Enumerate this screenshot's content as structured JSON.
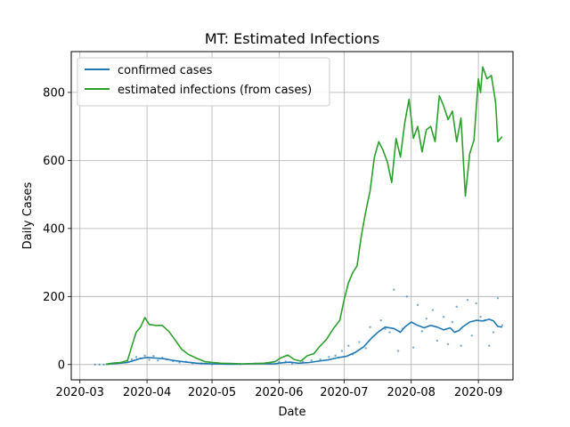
{
  "chart_data": {
    "type": "line",
    "title": "MT: Estimated Infections",
    "xlabel": "Date",
    "ylabel": "Daily Cases",
    "x_ticks": [
      "2020-03",
      "2020-04",
      "2020-05",
      "2020-06",
      "2020-07",
      "2020-08",
      "2020-09"
    ],
    "x_tick_days": [
      0,
      31,
      61,
      92,
      122,
      153,
      184
    ],
    "y_ticks": [
      0,
      200,
      400,
      600,
      800
    ],
    "xlim": [
      "2020-02-26",
      "2020-09-17"
    ],
    "ylim": [
      -45,
      920
    ],
    "grid": true,
    "legend_position": "upper-left",
    "series": [
      {
        "name": "confirmed cases",
        "color": "#1f77b4",
        "points": [
          [
            "2020-03-13",
            1
          ],
          [
            "2020-03-18",
            3
          ],
          [
            "2020-03-23",
            6
          ],
          [
            "2020-03-26",
            12
          ],
          [
            "2020-03-29",
            18
          ],
          [
            "2020-04-01",
            21
          ],
          [
            "2020-04-05",
            19
          ],
          [
            "2020-04-09",
            17
          ],
          [
            "2020-04-13",
            12
          ],
          [
            "2020-04-18",
            8
          ],
          [
            "2020-04-24",
            4
          ],
          [
            "2020-05-01",
            2
          ],
          [
            "2020-05-10",
            1
          ],
          [
            "2020-05-20",
            2
          ],
          [
            "2020-05-30",
            2
          ],
          [
            "2020-06-02",
            5
          ],
          [
            "2020-06-06",
            7
          ],
          [
            "2020-06-10",
            4
          ],
          [
            "2020-06-15",
            6
          ],
          [
            "2020-06-19",
            10
          ],
          [
            "2020-06-24",
            14
          ],
          [
            "2020-06-28",
            20
          ],
          [
            "2020-07-02",
            24
          ],
          [
            "2020-07-06",
            35
          ],
          [
            "2020-07-10",
            52
          ],
          [
            "2020-07-14",
            80
          ],
          [
            "2020-07-17",
            97
          ],
          [
            "2020-07-20",
            110
          ],
          [
            "2020-07-24",
            106
          ],
          [
            "2020-07-27",
            95
          ],
          [
            "2020-07-29",
            110
          ],
          [
            "2020-08-01",
            125
          ],
          [
            "2020-08-04",
            115
          ],
          [
            "2020-08-07",
            108
          ],
          [
            "2020-08-10",
            115
          ],
          [
            "2020-08-13",
            110
          ],
          [
            "2020-08-16",
            102
          ],
          [
            "2020-08-19",
            108
          ],
          [
            "2020-08-21",
            95
          ],
          [
            "2020-08-23",
            100
          ],
          [
            "2020-08-25",
            112
          ],
          [
            "2020-08-28",
            125
          ],
          [
            "2020-08-31",
            130
          ],
          [
            "2020-09-03",
            128
          ],
          [
            "2020-09-06",
            133
          ],
          [
            "2020-09-08",
            128
          ],
          [
            "2020-09-10",
            112
          ],
          [
            "2020-09-12",
            110
          ]
        ]
      },
      {
        "name": "estimated infections (from cases)",
        "color": "#2ca02c",
        "points": [
          [
            "2020-03-13",
            1
          ],
          [
            "2020-03-16",
            4
          ],
          [
            "2020-03-20",
            6
          ],
          [
            "2020-03-23",
            12
          ],
          [
            "2020-03-25",
            55
          ],
          [
            "2020-03-27",
            95
          ],
          [
            "2020-03-29",
            110
          ],
          [
            "2020-03-31",
            138
          ],
          [
            "2020-04-02",
            118
          ],
          [
            "2020-04-05",
            115
          ],
          [
            "2020-04-08",
            115
          ],
          [
            "2020-04-11",
            98
          ],
          [
            "2020-04-14",
            72
          ],
          [
            "2020-04-17",
            45
          ],
          [
            "2020-04-20",
            30
          ],
          [
            "2020-04-24",
            18
          ],
          [
            "2020-04-28",
            8
          ],
          [
            "2020-05-05",
            4
          ],
          [
            "2020-05-15",
            2
          ],
          [
            "2020-05-25",
            4
          ],
          [
            "2020-05-30",
            8
          ],
          [
            "2020-06-02",
            20
          ],
          [
            "2020-06-05",
            28
          ],
          [
            "2020-06-08",
            15
          ],
          [
            "2020-06-11",
            10
          ],
          [
            "2020-06-14",
            26
          ],
          [
            "2020-06-17",
            32
          ],
          [
            "2020-06-20",
            55
          ],
          [
            "2020-06-23",
            75
          ],
          [
            "2020-06-26",
            105
          ],
          [
            "2020-06-29",
            130
          ],
          [
            "2020-07-01",
            190
          ],
          [
            "2020-07-03",
            240
          ],
          [
            "2020-07-05",
            270
          ],
          [
            "2020-07-07",
            290
          ],
          [
            "2020-07-09",
            380
          ],
          [
            "2020-07-11",
            450
          ],
          [
            "2020-07-13",
            510
          ],
          [
            "2020-07-15",
            610
          ],
          [
            "2020-07-17",
            655
          ],
          [
            "2020-07-19",
            630
          ],
          [
            "2020-07-21",
            595
          ],
          [
            "2020-07-23",
            535
          ],
          [
            "2020-07-25",
            665
          ],
          [
            "2020-07-27",
            610
          ],
          [
            "2020-07-29",
            710
          ],
          [
            "2020-07-31",
            780
          ],
          [
            "2020-08-02",
            665
          ],
          [
            "2020-08-04",
            700
          ],
          [
            "2020-08-06",
            625
          ],
          [
            "2020-08-08",
            690
          ],
          [
            "2020-08-10",
            700
          ],
          [
            "2020-08-12",
            655
          ],
          [
            "2020-08-14",
            790
          ],
          [
            "2020-08-16",
            760
          ],
          [
            "2020-08-18",
            720
          ],
          [
            "2020-08-20",
            745
          ],
          [
            "2020-08-22",
            655
          ],
          [
            "2020-08-24",
            725
          ],
          [
            "2020-08-26",
            495
          ],
          [
            "2020-08-28",
            620
          ],
          [
            "2020-08-30",
            660
          ],
          [
            "2020-09-01",
            840
          ],
          [
            "2020-09-02",
            800
          ],
          [
            "2020-09-03",
            875
          ],
          [
            "2020-09-05",
            840
          ],
          [
            "2020-09-07",
            850
          ],
          [
            "2020-09-09",
            770
          ],
          [
            "2020-09-10",
            655
          ],
          [
            "2020-09-12",
            670
          ]
        ]
      },
      {
        "name": "",
        "color": "#1f77b4",
        "style": "scatter",
        "points": [
          [
            "2020-03-08",
            0
          ],
          [
            "2020-03-10",
            0
          ],
          [
            "2020-03-12",
            0
          ],
          [
            "2020-03-14",
            1
          ],
          [
            "2020-03-17",
            4
          ],
          [
            "2020-03-20",
            6
          ],
          [
            "2020-03-23",
            10
          ],
          [
            "2020-03-25",
            15
          ],
          [
            "2020-03-27",
            22
          ],
          [
            "2020-03-29",
            18
          ],
          [
            "2020-03-31",
            26
          ],
          [
            "2020-04-02",
            14
          ],
          [
            "2020-04-04",
            25
          ],
          [
            "2020-04-06",
            12
          ],
          [
            "2020-04-08",
            20
          ],
          [
            "2020-04-10",
            15
          ],
          [
            "2020-04-13",
            10
          ],
          [
            "2020-04-16",
            6
          ],
          [
            "2020-04-19",
            8
          ],
          [
            "2020-04-22",
            4
          ],
          [
            "2020-04-26",
            3
          ],
          [
            "2020-05-01",
            1
          ],
          [
            "2020-05-07",
            2
          ],
          [
            "2020-05-14",
            1
          ],
          [
            "2020-05-21",
            3
          ],
          [
            "2020-05-28",
            2
          ],
          [
            "2020-06-01",
            7
          ],
          [
            "2020-06-04",
            9
          ],
          [
            "2020-06-07",
            3
          ],
          [
            "2020-06-12",
            8
          ],
          [
            "2020-06-16",
            12
          ],
          [
            "2020-06-20",
            15
          ],
          [
            "2020-06-24",
            22
          ],
          [
            "2020-06-27",
            26
          ],
          [
            "2020-06-30",
            40
          ],
          [
            "2020-07-03",
            55
          ],
          [
            "2020-07-05",
            30
          ],
          [
            "2020-07-08",
            66
          ],
          [
            "2020-07-11",
            48
          ],
          [
            "2020-07-13",
            110
          ],
          [
            "2020-07-15",
            85
          ],
          [
            "2020-07-18",
            130
          ],
          [
            "2020-07-20",
            105
          ],
          [
            "2020-07-22",
            95
          ],
          [
            "2020-07-24",
            220
          ],
          [
            "2020-07-26",
            40
          ],
          [
            "2020-07-28",
            105
          ],
          [
            "2020-07-30",
            200
          ],
          [
            "2020-08-02",
            50
          ],
          [
            "2020-08-04",
            175
          ],
          [
            "2020-08-06",
            98
          ],
          [
            "2020-08-08",
            135
          ],
          [
            "2020-08-11",
            160
          ],
          [
            "2020-08-13",
            70
          ],
          [
            "2020-08-16",
            140
          ],
          [
            "2020-08-18",
            60
          ],
          [
            "2020-08-20",
            125
          ],
          [
            "2020-08-22",
            170
          ],
          [
            "2020-08-24",
            55
          ],
          [
            "2020-08-27",
            190
          ],
          [
            "2020-08-29",
            85
          ],
          [
            "2020-08-31",
            180
          ],
          [
            "2020-09-02",
            140
          ],
          [
            "2020-09-04",
            130
          ],
          [
            "2020-09-06",
            55
          ],
          [
            "2020-09-08",
            95
          ],
          [
            "2020-09-10",
            195
          ],
          [
            "2020-09-12",
            115
          ]
        ]
      }
    ]
  }
}
